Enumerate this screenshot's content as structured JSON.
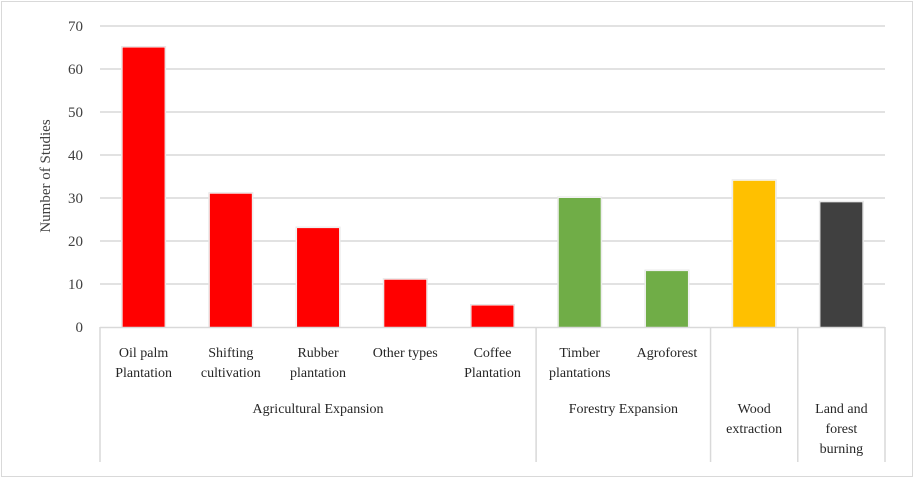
{
  "chart_data": {
    "type": "bar",
    "title": "",
    "xlabel": "",
    "ylabel": "Number of Studies",
    "ylim": [
      0,
      70
    ],
    "yticks": [
      0,
      10,
      20,
      30,
      40,
      50,
      60,
      70
    ],
    "grid": true,
    "legend": "none",
    "categories": [
      {
        "label": [
          "Oil palm",
          "Plantation"
        ],
        "value": 65,
        "color": "#ff0000",
        "group": 0
      },
      {
        "label": [
          "Shifting",
          "cultivation"
        ],
        "value": 31,
        "color": "#ff0000",
        "group": 0
      },
      {
        "label": [
          "Rubber",
          "plantation"
        ],
        "value": 23,
        "color": "#ff0000",
        "group": 0
      },
      {
        "label": [
          "Other types"
        ],
        "value": 11,
        "color": "#ff0000",
        "group": 0
      },
      {
        "label": [
          "Coffee",
          "Plantation"
        ],
        "value": 5,
        "color": "#ff0000",
        "group": 0
      },
      {
        "label": [
          "Timber",
          "plantations"
        ],
        "value": 30,
        "color": "#70ad47",
        "group": 1
      },
      {
        "label": [
          "Agroforest"
        ],
        "value": 13,
        "color": "#70ad47",
        "group": 1
      },
      {
        "label": [],
        "value": 34,
        "color": "#ffc000",
        "group": 2
      },
      {
        "label": [],
        "value": 29,
        "color": "#404040",
        "group": 3
      }
    ],
    "groups": [
      {
        "label": [
          "Agricultural Expansion"
        ],
        "span": 5
      },
      {
        "label": [
          "Forestry Expansion"
        ],
        "span": 2
      },
      {
        "label": [
          "Wood",
          "extraction"
        ],
        "span": 1
      },
      {
        "label": [
          "Land and",
          "forest",
          "burning"
        ],
        "span": 1
      }
    ]
  }
}
